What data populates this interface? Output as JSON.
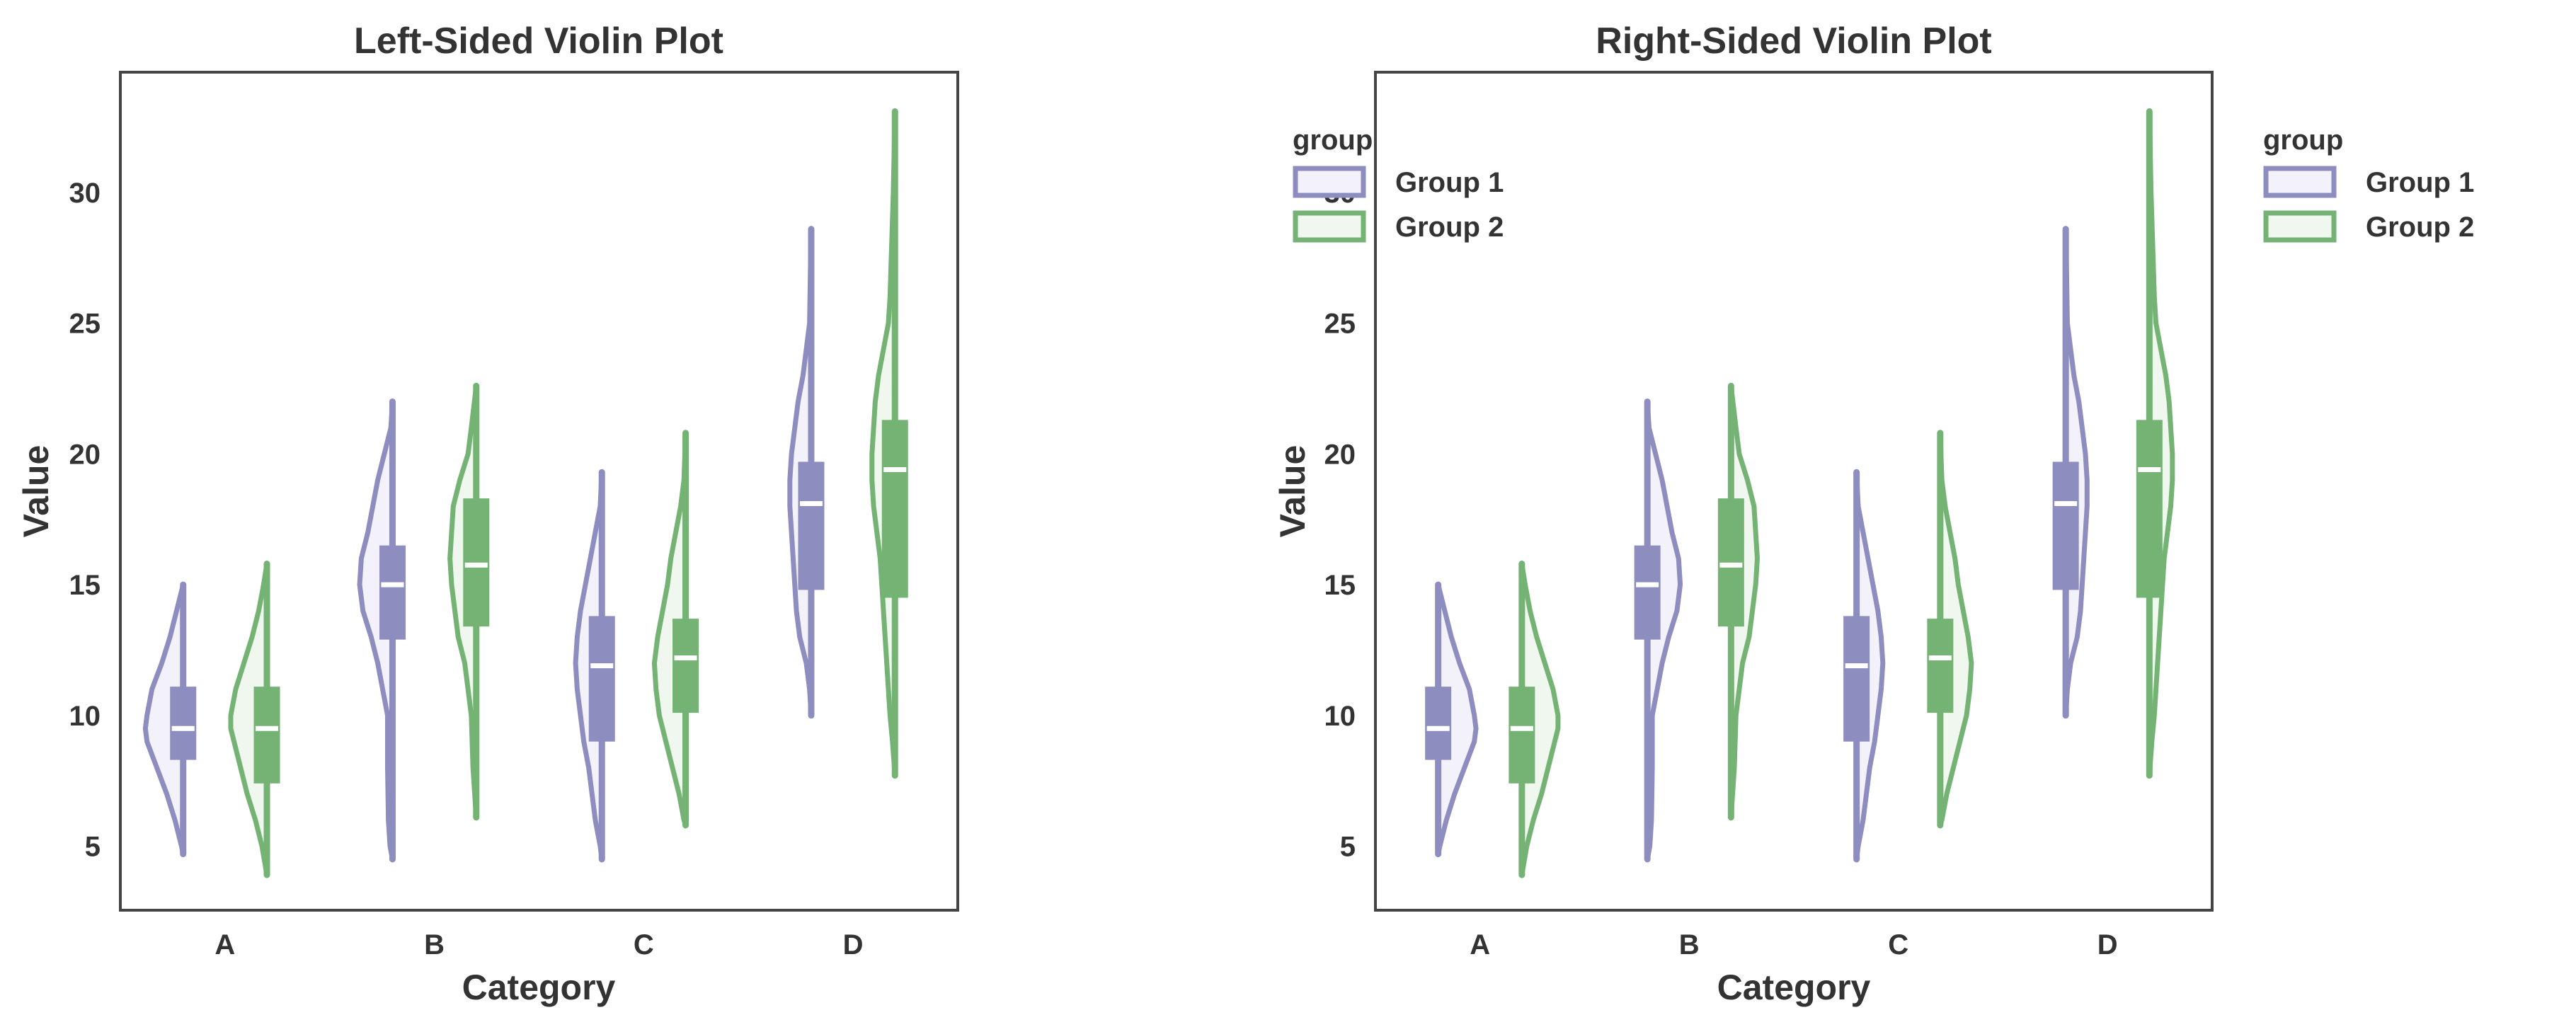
{
  "chart_data": [
    {
      "type": "violin",
      "variant": "half-violin-left",
      "title": "Left-Sided Violin Plot",
      "xlabel": "Category",
      "ylabel": "Value",
      "categories": [
        "A",
        "B",
        "C",
        "D"
      ],
      "yticks": [
        5,
        10,
        15,
        20,
        25,
        30
      ],
      "ylim": [
        2.55,
        34.6
      ],
      "grid": false,
      "legend": null
    },
    {
      "type": "violin",
      "variant": "half-violin-right",
      "title": "Right-Sided Violin Plot",
      "xlabel": "Category",
      "ylabel": "Value",
      "categories": [
        "A",
        "B",
        "C",
        "D"
      ],
      "yticks": [
        5,
        10,
        15,
        20,
        25,
        30
      ],
      "ylim": [
        2.55,
        34.6
      ],
      "grid": false,
      "legend": {
        "title": "group",
        "entries": [
          "Group 1",
          "Group 2"
        ],
        "placement": [
          "upper-left-outside-left",
          "upper-right-outside"
        ]
      }
    }
  ],
  "series": [
    {
      "name": "Group 1",
      "color": "#8d8dbf",
      "fill": "#f3f2fa",
      "stats": [
        {
          "category": "A",
          "min": 4.7,
          "q1": 8.3,
          "median": 9.5,
          "q3": 11.1,
          "max": 15.0,
          "density": [
            [
              15,
              0
            ],
            [
              14,
              8
            ],
            [
              13,
              16
            ],
            [
              12,
              26
            ],
            [
              11,
              38
            ],
            [
              10,
              44
            ],
            [
              9.5,
              46
            ],
            [
              9,
              44
            ],
            [
              8,
              32
            ],
            [
              7,
              20
            ],
            [
              6,
              10
            ],
            [
              5,
              2
            ],
            [
              4.7,
              0
            ]
          ]
        },
        {
          "category": "B",
          "min": 4.5,
          "q1": 12.9,
          "median": 15.0,
          "q3": 16.5,
          "max": 22.0,
          "density": [
            [
              22,
              0
            ],
            [
              21,
              2
            ],
            [
              20,
              10
            ],
            [
              19,
              18
            ],
            [
              18,
              24
            ],
            [
              17,
              30
            ],
            [
              16,
              38
            ],
            [
              15,
              40
            ],
            [
              14,
              36
            ],
            [
              13,
              26
            ],
            [
              12,
              18
            ],
            [
              11,
              12
            ],
            [
              10,
              6
            ],
            [
              8,
              6
            ],
            [
              6,
              5
            ],
            [
              5,
              3
            ],
            [
              4.5,
              0
            ]
          ]
        },
        {
          "category": "C",
          "min": 4.5,
          "q1": 9.0,
          "median": 11.9,
          "q3": 13.8,
          "max": 19.3,
          "density": [
            [
              19.3,
              0
            ],
            [
              18,
              2
            ],
            [
              17,
              8
            ],
            [
              16,
              14
            ],
            [
              15,
              20
            ],
            [
              14,
              26
            ],
            [
              13,
              30
            ],
            [
              12,
              32
            ],
            [
              11,
              30
            ],
            [
              10,
              26
            ],
            [
              9,
              22
            ],
            [
              8,
              16
            ],
            [
              7,
              12
            ],
            [
              6,
              8
            ],
            [
              5,
              2
            ],
            [
              4.5,
              0
            ]
          ]
        },
        {
          "category": "D",
          "min": 10.0,
          "q1": 14.8,
          "median": 18.1,
          "q3": 19.7,
          "max": 28.6,
          "density": [
            [
              28.6,
              0
            ],
            [
              27,
              1
            ],
            [
              25,
              2
            ],
            [
              23,
              10
            ],
            [
              22,
              16
            ],
            [
              21,
              20
            ],
            [
              20,
              24
            ],
            [
              19,
              26
            ],
            [
              18,
              26
            ],
            [
              17,
              24
            ],
            [
              16,
              22
            ],
            [
              15,
              20
            ],
            [
              14,
              18
            ],
            [
              13,
              14
            ],
            [
              12,
              6
            ],
            [
              11,
              2
            ],
            [
              10,
              0
            ]
          ]
        }
      ]
    },
    {
      "name": "Group 2",
      "color": "#75b375",
      "fill": "#eff7ef",
      "stats": [
        {
          "category": "A",
          "min": 3.9,
          "q1": 7.4,
          "median": 9.5,
          "q3": 11.1,
          "max": 15.8,
          "density": [
            [
              15.8,
              0
            ],
            [
              15,
              4
            ],
            [
              14,
              10
            ],
            [
              13,
              18
            ],
            [
              12,
              28
            ],
            [
              11,
              38
            ],
            [
              10,
              44
            ],
            [
              9.5,
              44
            ],
            [
              9,
              40
            ],
            [
              8,
              32
            ],
            [
              7,
              24
            ],
            [
              6,
              14
            ],
            [
              5,
              6
            ],
            [
              3.9,
              0
            ]
          ]
        },
        {
          "category": "B",
          "min": 6.1,
          "q1": 13.4,
          "median": 15.75,
          "q3": 18.3,
          "max": 22.6,
          "density": [
            [
              22.6,
              0
            ],
            [
              21,
              6
            ],
            [
              20,
              10
            ],
            [
              19,
              20
            ],
            [
              18,
              28
            ],
            [
              17,
              30
            ],
            [
              16,
              32
            ],
            [
              15,
              30
            ],
            [
              14,
              26
            ],
            [
              13,
              22
            ],
            [
              12,
              14
            ],
            [
              11,
              10
            ],
            [
              10,
              6
            ],
            [
              8,
              4
            ],
            [
              6.1,
              0
            ]
          ]
        },
        {
          "category": "C",
          "min": 5.8,
          "q1": 10.1,
          "median": 12.2,
          "q3": 13.7,
          "max": 20.8,
          "density": [
            [
              20.8,
              0
            ],
            [
              19,
              2
            ],
            [
              18,
              6
            ],
            [
              17,
              12
            ],
            [
              16,
              18
            ],
            [
              15,
              22
            ],
            [
              14,
              28
            ],
            [
              13,
              34
            ],
            [
              12,
              38
            ],
            [
              11,
              36
            ],
            [
              10,
              32
            ],
            [
              9,
              24
            ],
            [
              8,
              16
            ],
            [
              7,
              8
            ],
            [
              6,
              2
            ],
            [
              5.8,
              0
            ]
          ]
        },
        {
          "category": "D",
          "min": 7.7,
          "q1": 14.5,
          "median": 19.4,
          "q3": 21.3,
          "max": 33.1,
          "density": [
            [
              33.1,
              0
            ],
            [
              30,
              2
            ],
            [
              26,
              6
            ],
            [
              25,
              8
            ],
            [
              24,
              14
            ],
            [
              23,
              20
            ],
            [
              22,
              24
            ],
            [
              21,
              26
            ],
            [
              20,
              28
            ],
            [
              19,
              28
            ],
            [
              18,
              26
            ],
            [
              17,
              22
            ],
            [
              16,
              18
            ],
            [
              15,
              16
            ],
            [
              14,
              14
            ],
            [
              13,
              12
            ],
            [
              12,
              10
            ],
            [
              11,
              8
            ],
            [
              10,
              6
            ],
            [
              9,
              3
            ],
            [
              7.7,
              0
            ]
          ]
        }
      ]
    }
  ]
}
